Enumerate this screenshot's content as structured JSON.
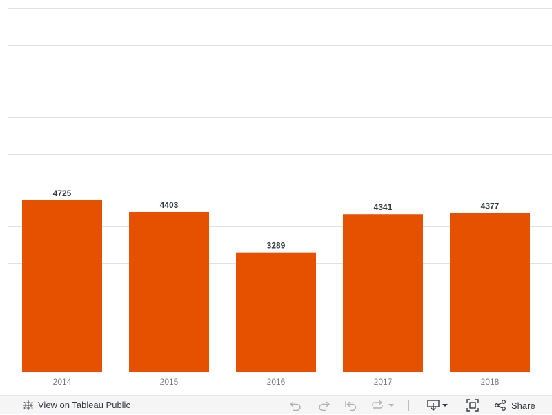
{
  "chart_data": {
    "type": "bar",
    "categories": [
      "2014",
      "2015",
      "2016",
      "2017",
      "2018"
    ],
    "values": [
      4725,
      4403,
      3289,
      4341,
      4377
    ],
    "title": "",
    "xlabel": "",
    "ylabel": "",
    "ylim": [
      0,
      10000
    ],
    "grid": true,
    "bar_color": "#e65100"
  },
  "toolbar": {
    "view_label": "View on Tableau Public",
    "share_label": "Share",
    "icons": {
      "view": "tableau-logo-icon",
      "undo": "undo-icon",
      "redo": "redo-icon",
      "revert": "revert-icon",
      "refresh": "refresh-icon",
      "refresh_menu": "chevron-down-icon",
      "download": "download-icon",
      "download_menu": "chevron-down-icon",
      "fullscreen": "fullscreen-icon",
      "share": "share-icon"
    }
  }
}
